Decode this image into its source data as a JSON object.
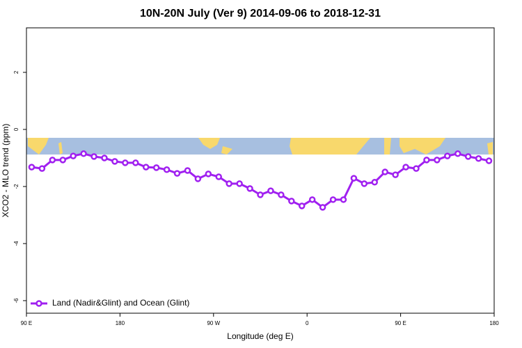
{
  "chart_data": {
    "type": "line",
    "title": "10N-20N July (Ver 9)   2014-09-06 to 2018-12-31",
    "xlabel": "Longitude (deg E)",
    "ylabel": "XCO2 - MLO trend (ppm)",
    "x": [
      95,
      105,
      115,
      125,
      135,
      145,
      155,
      165,
      175,
      185,
      195,
      205,
      215,
      225,
      235,
      245,
      255,
      265,
      275,
      285,
      295,
      305,
      315,
      325,
      335,
      345,
      355,
      365,
      375,
      385,
      395,
      405,
      415,
      425,
      435,
      445,
      455,
      465,
      475,
      485,
      495,
      505,
      515,
      525,
      535
    ],
    "series": [
      {
        "name": "Land (Nadir&Glint) and Ocean (Glint)",
        "color": "#a020f0",
        "values": [
          -1.32,
          -1.37,
          -1.07,
          -1.07,
          -0.93,
          -0.85,
          -0.95,
          -1.0,
          -1.12,
          -1.17,
          -1.17,
          -1.32,
          -1.34,
          -1.41,
          -1.54,
          -1.44,
          -1.73,
          -1.56,
          -1.66,
          -1.9,
          -1.9,
          -2.07,
          -2.29,
          -2.15,
          -2.29,
          -2.51,
          -2.68,
          -2.46,
          -2.73,
          -2.46,
          -2.46,
          -1.71,
          -1.9,
          -1.85,
          -1.49,
          -1.59,
          -1.32,
          -1.37,
          -1.07,
          -1.07,
          -0.93,
          -0.85,
          -0.95,
          -1.02,
          -1.1
        ]
      }
    ],
    "xlim": [
      90,
      540
    ],
    "xticks": [
      {
        "value": 90,
        "label": "90 E"
      },
      180,
      {
        "value": 270,
        "label": "90 W"
      },
      {
        "value": 360,
        "label": "0"
      },
      {
        "value": 450,
        "label": "90 E"
      },
      {
        "value": 540,
        "label": "180"
      }
    ],
    "ylim": [
      -6.44,
      3.56
    ],
    "yticks": [
      -6,
      -4,
      -2,
      0,
      2
    ],
    "legend": "bottom-left"
  }
}
